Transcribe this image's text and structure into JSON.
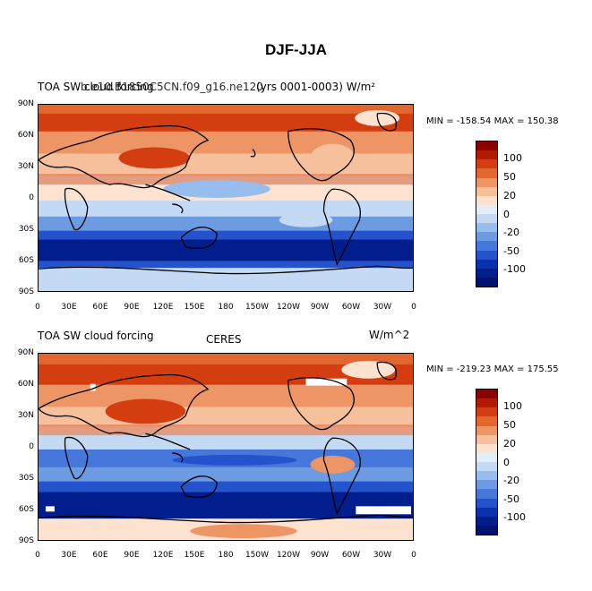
{
  "page": {
    "title": "DJF-JJA"
  },
  "panels": [
    {
      "left_label": "TOA SW cloud forcing",
      "overlap_label": "b.e10.B1850C5CN.f09_g16.ne120",
      "right_label": "(yrs 0001-0003)  W/m²",
      "stats": "MIN = -158.54  MAX = 150.38"
    },
    {
      "left_label": "TOA SW cloud forcing",
      "center_label": "CERES",
      "right_label": "W/m^2",
      "stats": "MIN = -219.23  MAX = 175.55"
    }
  ],
  "axes": {
    "lat_labels": [
      "90N",
      "60N",
      "30N",
      "0",
      "30S",
      "60S",
      "90S"
    ],
    "lon_labels": [
      "0",
      "30E",
      "60E",
      "90E",
      "120E",
      "150E",
      "180",
      "150W",
      "120W",
      "90W",
      "60W",
      "30W",
      "0"
    ]
  },
  "colorbar": {
    "labels": [
      "100",
      "50",
      "20",
      "0",
      "-20",
      "-50",
      "-100"
    ],
    "colors": [
      "#8b0000",
      "#b31b00",
      "#d43d10",
      "#e2662e",
      "#ee9565",
      "#f7c09d",
      "#fde3cf",
      "#e3eef9",
      "#c3d9f4",
      "#97bdee",
      "#6c9be2",
      "#4677da",
      "#2553cb",
      "#0b32ad",
      "#021d8c",
      "#001270"
    ]
  }
}
